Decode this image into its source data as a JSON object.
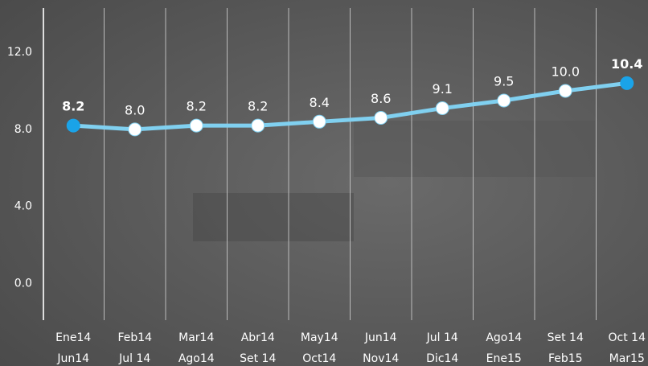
{
  "chart_data": {
    "type": "line",
    "categories": [
      [
        "Ene14",
        "Jun14"
      ],
      [
        "Feb14",
        "Jul 14"
      ],
      [
        "Mar14",
        "Ago14"
      ],
      [
        "Abr14",
        "Set 14"
      ],
      [
        "May14",
        "Oct14"
      ],
      [
        "Jun14",
        "Nov14"
      ],
      [
        "Jul 14",
        "Dic14"
      ],
      [
        "Ago14",
        "Ene15"
      ],
      [
        "Set 14",
        "Feb15"
      ],
      [
        "Oct 14",
        "Mar15"
      ]
    ],
    "values": [
      8.2,
      8.0,
      8.2,
      8.2,
      8.4,
      8.6,
      9.1,
      9.5,
      10.0,
      10.4
    ],
    "value_labels": [
      "8.2",
      "8.0",
      "8.2",
      "8.2",
      "8.4",
      "8.6",
      "9.1",
      "9.5",
      "10.0",
      "10.4"
    ],
    "color": "#80d0f0",
    "highlight_color": "#1aa3e8",
    "ylim": [
      -1.9,
      14.3
    ],
    "yticks": [
      {
        "value": 0,
        "label": "0.0"
      },
      {
        "value": 4,
        "label": "4.0"
      },
      {
        "value": 8,
        "label": "8.0"
      },
      {
        "value": 12,
        "label": "12.0"
      }
    ]
  }
}
